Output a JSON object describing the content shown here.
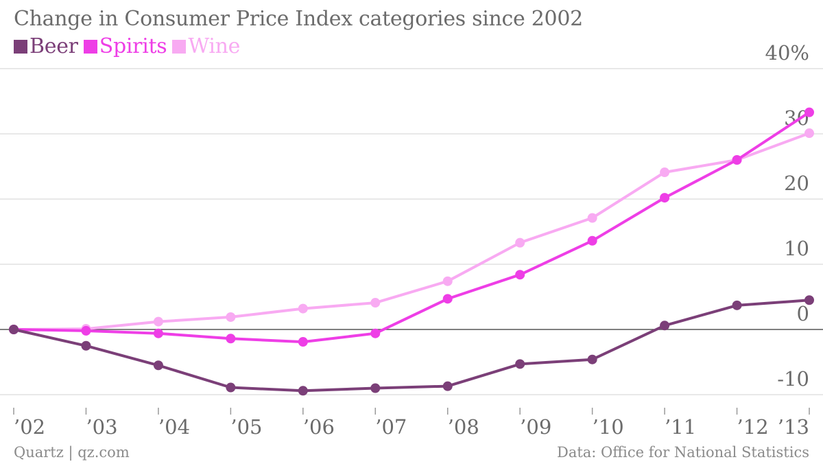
{
  "header": {
    "title": "Change in Consumer Price Index categories since 2002"
  },
  "footer": {
    "source_left": "Quartz | qz.com",
    "source_right": "Data: Office for National Statistics"
  },
  "chart_data": {
    "type": "line",
    "title": "Change in Consumer Price Index categories since 2002",
    "xlabel": "",
    "ylabel": "",
    "categories": [
      "’02",
      "’03",
      "’04",
      "’05",
      "’06",
      "’07",
      "’08",
      "’09",
      "’10",
      "’11",
      "’12",
      "’13"
    ],
    "x": [
      2002,
      2003,
      2004,
      2005,
      2006,
      2007,
      2008,
      2009,
      2010,
      2011,
      2012,
      2013
    ],
    "ylim": [
      -10,
      40
    ],
    "yticks": [
      {
        "value": 40,
        "label": "40%"
      },
      {
        "value": 30,
        "label": "30"
      },
      {
        "value": 20,
        "label": "20"
      },
      {
        "value": 10,
        "label": "10"
      },
      {
        "value": 0,
        "label": "0"
      },
      {
        "value": -10,
        "label": "-10"
      }
    ],
    "grid": true,
    "legend_position": "top-left",
    "series": [
      {
        "name": "Beer",
        "color": "#7b3f78",
        "values": [
          0,
          -2.5,
          -5.5,
          -8.9,
          -9.4,
          -9.0,
          -8.7,
          -5.3,
          -4.6,
          0.6,
          3.7,
          4.5
        ]
      },
      {
        "name": "Spirits",
        "color": "#ee3ee6",
        "values": [
          0,
          -0.2,
          -0.6,
          -1.4,
          -1.9,
          -0.6,
          4.7,
          8.4,
          13.6,
          20.2,
          26.0,
          33.3
        ]
      },
      {
        "name": "Wine",
        "color": "#f8aaf2",
        "values": [
          0,
          0.1,
          1.2,
          1.9,
          3.2,
          4.1,
          7.4,
          13.3,
          17.1,
          24.1,
          26.0,
          30.1
        ]
      }
    ]
  }
}
